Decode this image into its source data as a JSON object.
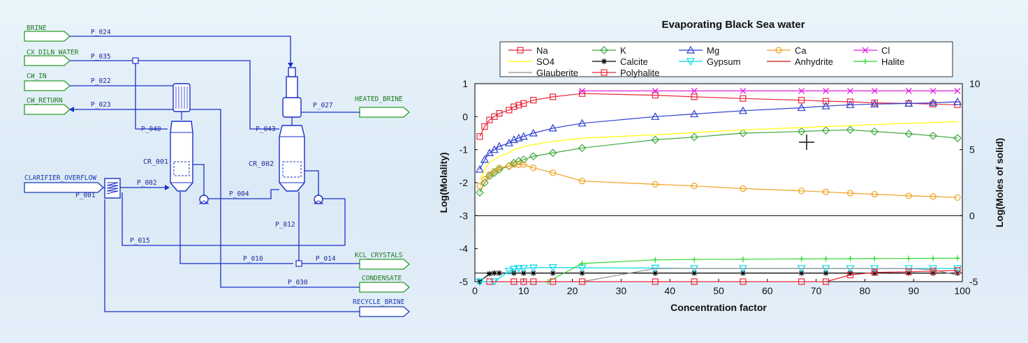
{
  "flowsheet": {
    "feeds": {
      "brine": "BRINE",
      "dilution_water": "CX_DILN_WATER",
      "cw_in": "CW_IN",
      "cw_return": "CW_RETURN",
      "clarifier_overflow": "CLARIFIER_OVERFLOW"
    },
    "products": {
      "heated_brine": "HEATED_BRINE",
      "kcl_crystals": "KCL_CRYSTALS",
      "condensate": "CONDENSATE",
      "recycle_brine": "RECYCLE_BRINE"
    },
    "units": {
      "crystallizer_1": "CR_001",
      "crystallizer_2": "CR_002"
    },
    "streams": {
      "p001": "P_001",
      "p002": "P_002",
      "p004": "P_004",
      "p010": "P_010",
      "p012": "P_012",
      "p014": "P_014",
      "p015": "P_015",
      "p022": "P_022",
      "p023": "P_023",
      "p024": "P_024",
      "p027": "P_027",
      "p030": "P_030",
      "p035": "P_035",
      "p040": "P_040",
      "p043": "P_043"
    }
  },
  "chart_data": {
    "type": "line",
    "title": "Evaporating Black Sea water",
    "xlabel": "Concentration factor",
    "ylabel": "Log(Molality)",
    "y2label": "Log(Moles of solid)",
    "xlim": [
      0,
      100
    ],
    "ylim": [
      -5,
      1
    ],
    "y2lim": [
      -5,
      10
    ],
    "xticks": [
      "0",
      "10",
      "20",
      "30",
      "40",
      "50",
      "60",
      "70",
      "80",
      "90",
      "100"
    ],
    "yticks": [
      "1",
      "0",
      "-1",
      "-2",
      "-3",
      "-4",
      "-5"
    ],
    "y2ticks": [
      "10",
      "5",
      "0",
      "-5"
    ],
    "legend_placement": "top",
    "series": [
      {
        "name": "Na",
        "axis": "left",
        "color": "#e8283a",
        "marker": "square",
        "x": [
          1,
          2,
          3,
          4,
          5,
          7,
          8,
          9,
          10,
          12,
          16,
          22,
          37,
          45,
          55,
          67,
          72,
          77,
          82,
          89,
          94,
          99
        ],
        "y": [
          -0.6,
          -0.3,
          -0.1,
          0.0,
          0.1,
          0.2,
          0.3,
          0.35,
          0.4,
          0.5,
          0.6,
          0.7,
          0.65,
          0.6,
          0.55,
          0.5,
          0.47,
          0.45,
          0.42,
          0.4,
          0.38,
          0.36
        ]
      },
      {
        "name": "K",
        "axis": "left",
        "color": "#3da63d",
        "marker": "diamond",
        "x": [
          1,
          2,
          3,
          4,
          5,
          7,
          8,
          9,
          10,
          12,
          16,
          22,
          37,
          45,
          55,
          67,
          72,
          77,
          82,
          89,
          94,
          99
        ],
        "y": [
          -2.3,
          -2.0,
          -1.8,
          -1.7,
          -1.6,
          -1.5,
          -1.4,
          -1.35,
          -1.3,
          -1.2,
          -1.1,
          -0.95,
          -0.7,
          -0.62,
          -0.5,
          -0.45,
          -0.42,
          -0.4,
          -0.45,
          -0.52,
          -0.58,
          -0.65
        ]
      },
      {
        "name": "Mg",
        "axis": "left",
        "color": "#2b3fd0",
        "marker": "triangle",
        "x": [
          1,
          2,
          3,
          4,
          5,
          7,
          8,
          9,
          10,
          12,
          16,
          22,
          37,
          45,
          55,
          67,
          72,
          77,
          82,
          89,
          94,
          99
        ],
        "y": [
          -1.6,
          -1.3,
          -1.1,
          -1.0,
          -0.9,
          -0.8,
          -0.7,
          -0.65,
          -0.6,
          -0.5,
          -0.35,
          -0.2,
          0.0,
          0.08,
          0.18,
          0.27,
          0.32,
          0.36,
          0.38,
          0.4,
          0.42,
          0.45
        ]
      },
      {
        "name": "Ca",
        "axis": "left",
        "color": "#f0a020",
        "marker": "circle",
        "x": [
          1,
          2,
          3,
          4,
          5,
          7,
          8,
          9,
          10,
          12,
          16,
          22,
          37,
          45,
          55,
          67,
          72,
          77,
          82,
          89,
          94,
          99
        ],
        "y": [
          -2.1,
          -1.9,
          -1.75,
          -1.65,
          -1.55,
          -1.5,
          -1.45,
          -1.45,
          -1.45,
          -1.55,
          -1.7,
          -1.95,
          -2.05,
          -2.1,
          -2.18,
          -2.25,
          -2.28,
          -2.32,
          -2.35,
          -2.4,
          -2.42,
          -2.45
        ]
      },
      {
        "name": "Cl",
        "axis": "left",
        "color": "#e020e0",
        "marker": "x",
        "x": [
          22,
          37,
          45,
          55,
          67,
          72,
          77,
          82,
          89,
          94,
          99
        ],
        "y": [
          0.78,
          0.78,
          0.78,
          0.78,
          0.78,
          0.78,
          0.78,
          0.78,
          0.78,
          0.78,
          0.78
        ]
      },
      {
        "name": "SO4",
        "axis": "left",
        "color": "#ffff00",
        "marker": "none",
        "x": [
          1,
          2,
          3,
          4,
          5,
          7,
          8,
          9,
          10,
          12,
          16,
          22,
          37,
          45,
          55,
          67,
          72,
          77,
          82,
          89,
          94,
          99
        ],
        "y": [
          -1.9,
          -1.6,
          -1.4,
          -1.3,
          -1.2,
          -1.1,
          -1.0,
          -0.95,
          -0.9,
          -0.85,
          -0.75,
          -0.65,
          -0.55,
          -0.48,
          -0.4,
          -0.33,
          -0.3,
          -0.27,
          -0.24,
          -0.2,
          -0.18,
          -0.15
        ]
      },
      {
        "name": "Calcite",
        "axis": "right",
        "color": "#000000",
        "marker": "star",
        "x": [
          1,
          3,
          4,
          5,
          8,
          10,
          12,
          16,
          22,
          37,
          45,
          55,
          67,
          72,
          77,
          82,
          89,
          94,
          99
        ],
        "y": [
          -5.0,
          -4.4,
          -4.35,
          -4.35,
          -4.35,
          -4.35,
          -4.35,
          -4.35,
          -4.35,
          -4.35,
          -4.35,
          -4.35,
          -4.35,
          -4.35,
          -4.35,
          -4.35,
          -4.35,
          -4.35,
          -4.35
        ]
      },
      {
        "name": "Gypsum",
        "axis": "right",
        "color": "#00d8e8",
        "marker": "triangle-down",
        "x": [
          1,
          4,
          7,
          8,
          9,
          10,
          12,
          16,
          22,
          37,
          45,
          55,
          67,
          72,
          77,
          82,
          89,
          94,
          99
        ],
        "y": [
          -5.0,
          -5.0,
          -4.2,
          -4.05,
          -4.0,
          -3.98,
          -3.95,
          -3.92,
          -3.95,
          -3.97,
          -4.0,
          -4.0,
          -4.0,
          -4.0,
          -4.0,
          -4.0,
          -4.0,
          -4.0,
          -4.0
        ]
      },
      {
        "name": "Anhydrite",
        "axis": "right",
        "color": "#c01010",
        "marker": "none",
        "x": [],
        "y": []
      },
      {
        "name": "Halite",
        "axis": "right",
        "color": "#2ed82e",
        "marker": "plus",
        "x": [
          15,
          22,
          37,
          45,
          55,
          67,
          72,
          77,
          82,
          89,
          94,
          99
        ],
        "y": [
          -5.0,
          -3.62,
          -3.35,
          -3.32,
          -3.3,
          -3.28,
          -3.27,
          -3.26,
          -3.25,
          -3.24,
          -3.23,
          -3.22
        ]
      },
      {
        "name": "Glauberite",
        "axis": "right",
        "color": "#909090",
        "marker": "none",
        "x": [
          22,
          37,
          45,
          55,
          67,
          72,
          77,
          82,
          89,
          94,
          99
        ],
        "y": [
          -5.0,
          -4.0,
          -4.0,
          -4.0,
          -4.0,
          -4.0,
          -4.0,
          -4.0,
          -4.0,
          -4.1,
          -4.5
        ]
      },
      {
        "name": "Polyhalite",
        "axis": "right",
        "color": "#e8283a",
        "marker": "square",
        "x": [
          3,
          8,
          10,
          12,
          16,
          22,
          37,
          45,
          55,
          67,
          72,
          77,
          82,
          89,
          94,
          99
        ],
        "y": [
          -5.0,
          -5.0,
          -5.0,
          -5.0,
          -5.0,
          -5.0,
          -5.0,
          -5.0,
          -5.0,
          -5.0,
          -5.0,
          -4.5,
          -4.3,
          -4.25,
          -4.2,
          -4.15
        ]
      }
    ]
  }
}
